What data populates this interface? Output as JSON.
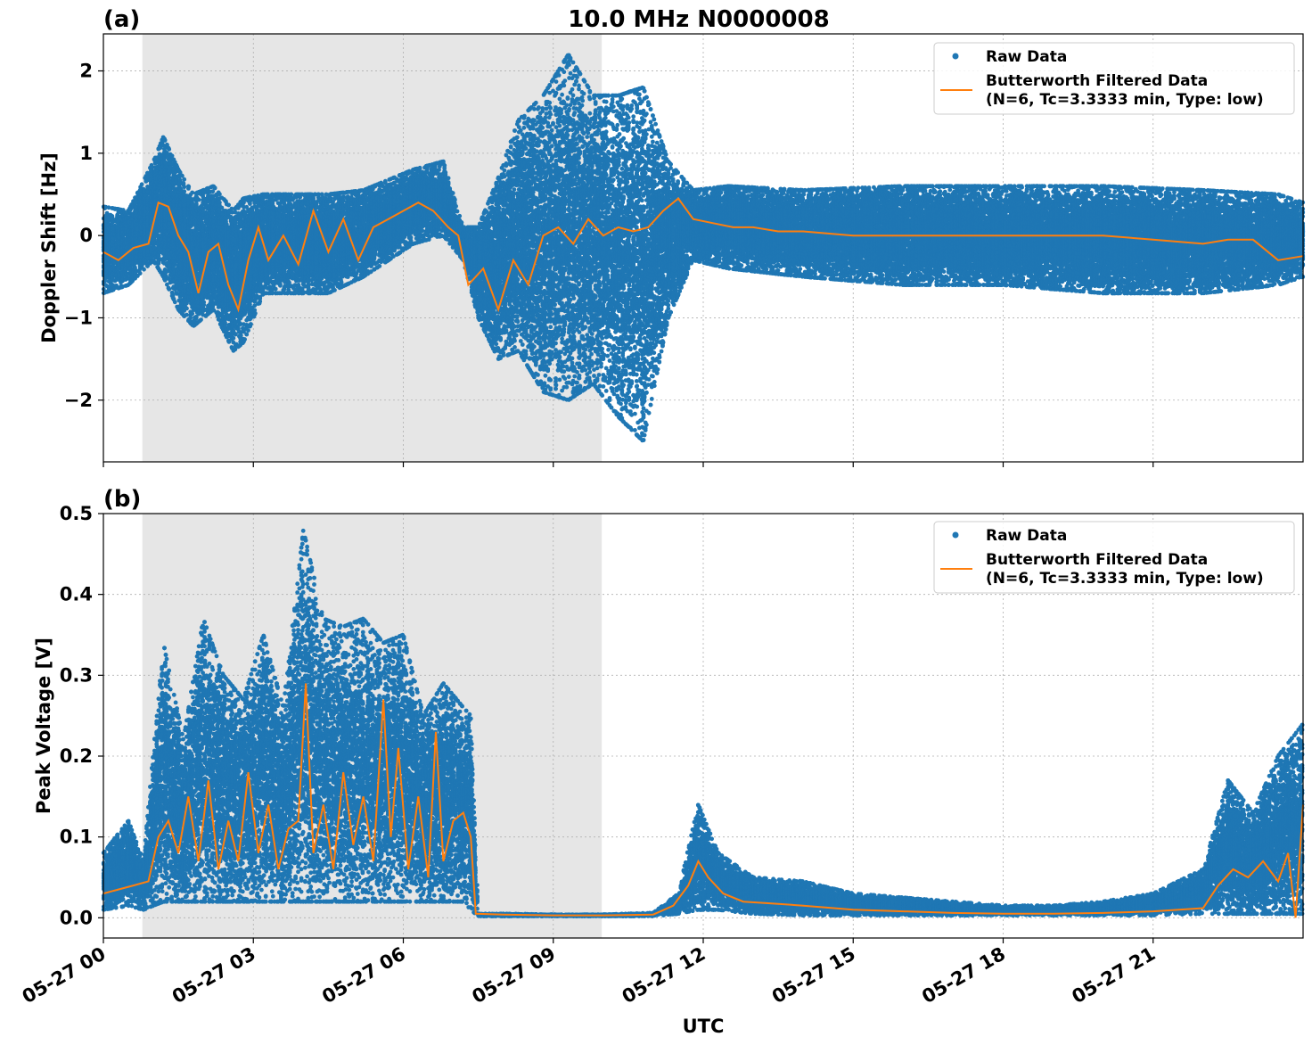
{
  "figure": {
    "title": "10.0 MHz N0000008",
    "xlabel": "UTC",
    "x_ticks": [
      "05-27 00",
      "05-27 03",
      "05-27 06",
      "05-27 09",
      "05-27 12",
      "05-27 15",
      "05-27 18",
      "05-27 21"
    ],
    "shaded_span_hours": [
      0.78,
      9.97
    ],
    "x_range_hours": [
      0,
      24
    ],
    "colors": {
      "raw": "#1f77b4",
      "filtered": "#ff7f0e",
      "shade": "#e6e6e6",
      "grid": "#b0b0b0"
    }
  },
  "chart_data": [
    {
      "type": "scatter",
      "panel_label": "(a)",
      "title": "10.0 MHz N0000008",
      "xlabel": "",
      "ylabel": "Doppler Shift [Hz]",
      "ylim": [
        -2.75,
        2.45
      ],
      "y_ticks": [
        2,
        1,
        0,
        -1,
        -2
      ],
      "y_tick_labels": [
        "2",
        "1",
        "0",
        "−1",
        "−2"
      ],
      "grid": true,
      "legend": {
        "placement": "top-right",
        "entries": [
          "Raw Data",
          "Butterworth Filtered Data",
          "(N=6, Tc=3.3333 min, Type: low)"
        ]
      },
      "series": [
        {
          "name": "Raw Data",
          "kind": "scatter",
          "approx_envelope": {
            "x_hours": [
              0,
              0.5,
              1.0,
              1.2,
              1.5,
              1.8,
              2.2,
              2.6,
              2.8,
              3.2,
              3.8,
              4.5,
              5.2,
              6.2,
              6.8,
              7.2,
              7.5,
              7.9,
              8.3,
              8.8,
              9.3,
              9.8,
              10.3,
              10.8,
              11.3,
              11.8,
              12.5,
              14,
              16,
              18,
              20,
              22,
              23.5,
              24
            ],
            "y_upper": [
              0.35,
              0.3,
              0.9,
              1.2,
              0.8,
              0.5,
              0.6,
              0.3,
              0.45,
              0.5,
              0.5,
              0.5,
              0.55,
              0.8,
              0.9,
              0.1,
              0.1,
              0.7,
              1.4,
              1.7,
              2.2,
              1.7,
              1.7,
              1.8,
              0.9,
              0.55,
              0.6,
              0.55,
              0.6,
              0.6,
              0.6,
              0.55,
              0.5,
              0.4
            ],
            "y_lower": [
              -0.7,
              -0.6,
              -0.3,
              -0.5,
              -0.9,
              -1.1,
              -0.9,
              -1.4,
              -1.3,
              -0.7,
              -0.7,
              -0.7,
              -0.5,
              -0.1,
              0.0,
              -0.3,
              -1.0,
              -1.5,
              -1.4,
              -1.9,
              -2.0,
              -1.8,
              -2.2,
              -2.5,
              -1.0,
              -0.3,
              -0.4,
              -0.5,
              -0.6,
              -0.6,
              -0.7,
              -0.7,
              -0.6,
              -0.5
            ]
          }
        },
        {
          "name": "Butterworth Filtered Data",
          "kind": "line",
          "x_hours": [
            0,
            0.3,
            0.6,
            0.9,
            1.1,
            1.3,
            1.5,
            1.7,
            1.9,
            2.1,
            2.3,
            2.5,
            2.7,
            2.9,
            3.1,
            3.3,
            3.6,
            3.9,
            4.2,
            4.5,
            4.8,
            5.1,
            5.4,
            5.7,
            6.0,
            6.3,
            6.6,
            6.9,
            7.1,
            7.3,
            7.6,
            7.9,
            8.2,
            8.5,
            8.8,
            9.1,
            9.4,
            9.7,
            10.0,
            10.3,
            10.6,
            10.9,
            11.2,
            11.5,
            11.8,
            12.2,
            12.6,
            13.0,
            13.5,
            14.0,
            15.0,
            16.0,
            17.0,
            18.0,
            19.0,
            20.0,
            21.0,
            22.0,
            22.5,
            23.0,
            23.5,
            24.0
          ],
          "y": [
            -0.2,
            -0.3,
            -0.15,
            -0.1,
            0.4,
            0.35,
            0.0,
            -0.2,
            -0.7,
            -0.2,
            -0.1,
            -0.6,
            -0.9,
            -0.3,
            0.1,
            -0.3,
            0.0,
            -0.35,
            0.3,
            -0.2,
            0.2,
            -0.3,
            0.1,
            0.2,
            0.3,
            0.4,
            0.3,
            0.1,
            0.0,
            -0.6,
            -0.4,
            -0.9,
            -0.3,
            -0.6,
            0.0,
            0.1,
            -0.1,
            0.2,
            0.0,
            0.1,
            0.05,
            0.1,
            0.3,
            0.45,
            0.2,
            0.15,
            0.1,
            0.1,
            0.05,
            0.05,
            0.0,
            0.0,
            0.0,
            0.0,
            0.0,
            0.0,
            -0.05,
            -0.1,
            -0.05,
            -0.05,
            -0.3,
            -0.25
          ]
        }
      ]
    },
    {
      "type": "scatter",
      "panel_label": "(b)",
      "xlabel": "UTC",
      "ylabel": "Peak Voltage [V]",
      "ylim": [
        -0.025,
        0.5
      ],
      "y_ticks": [
        0.5,
        0.4,
        0.3,
        0.2,
        0.1,
        0.0
      ],
      "y_tick_labels": [
        "0.5",
        "0.4",
        "0.3",
        "0.2",
        "0.1",
        "0.0"
      ],
      "grid": true,
      "legend": {
        "placement": "top-right",
        "entries": [
          "Raw Data",
          "Butterworth Filtered Data",
          "(N=6, Tc=3.3333 min, Type: low)"
        ]
      },
      "series": [
        {
          "name": "Raw Data",
          "kind": "scatter",
          "approx_envelope": {
            "x_hours": [
              0,
              0.5,
              0.8,
              1.2,
              1.6,
              2.0,
              2.4,
              2.8,
              3.2,
              3.6,
              4.0,
              4.4,
              4.8,
              5.2,
              5.6,
              6.0,
              6.4,
              6.8,
              7.2,
              7.35,
              7.5,
              8.0,
              9.0,
              10.0,
              11.0,
              11.5,
              11.9,
              12.3,
              13.0,
              14.0,
              15.0,
              16.0,
              17.0,
              18.0,
              19.0,
              20.0,
              21.0,
              22.0,
              22.5,
              23.0,
              23.5,
              24.0
            ],
            "y_upper": [
              0.08,
              0.12,
              0.07,
              0.34,
              0.22,
              0.37,
              0.3,
              0.27,
              0.35,
              0.26,
              0.48,
              0.37,
              0.36,
              0.37,
              0.34,
              0.35,
              0.25,
              0.29,
              0.26,
              0.25,
              0.005,
              0.005,
              0.004,
              0.004,
              0.006,
              0.03,
              0.14,
              0.08,
              0.05,
              0.045,
              0.03,
              0.025,
              0.02,
              0.015,
              0.015,
              0.02,
              0.03,
              0.06,
              0.17,
              0.13,
              0.2,
              0.24
            ],
            "y_lower": [
              0.01,
              0.015,
              0.01,
              0.02,
              0.02,
              0.02,
              0.02,
              0.02,
              0.02,
              0.02,
              0.02,
              0.02,
              0.02,
              0.02,
              0.02,
              0.02,
              0.02,
              0.02,
              0.02,
              0.01,
              0.002,
              0.002,
              0.002,
              0.002,
              0.002,
              0.005,
              0.01,
              0.01,
              0.005,
              0.003,
              0.003,
              0.003,
              0.003,
              0.003,
              0.003,
              0.003,
              0.003,
              0.005,
              0.005,
              0.005,
              0.005,
              0.005
            ]
          }
        },
        {
          "name": "Butterworth Filtered Data",
          "kind": "line",
          "x_hours": [
            0,
            0.3,
            0.6,
            0.9,
            1.1,
            1.3,
            1.5,
            1.7,
            1.9,
            2.1,
            2.3,
            2.5,
            2.7,
            2.9,
            3.1,
            3.3,
            3.5,
            3.7,
            3.9,
            4.05,
            4.2,
            4.4,
            4.6,
            4.8,
            5.0,
            5.2,
            5.4,
            5.6,
            5.75,
            5.9,
            6.1,
            6.3,
            6.5,
            6.65,
            6.8,
            7.0,
            7.2,
            7.35,
            7.45,
            8.0,
            9.0,
            10.0,
            11.0,
            11.4,
            11.7,
            11.9,
            12.1,
            12.4,
            12.8,
            13.3,
            14.0,
            15.0,
            16.0,
            17.0,
            18.0,
            19.0,
            20.0,
            21.0,
            22.0,
            22.3,
            22.6,
            22.9,
            23.2,
            23.5,
            23.7,
            23.85,
            24.0
          ],
          "y": [
            0.03,
            0.035,
            0.04,
            0.045,
            0.1,
            0.12,
            0.08,
            0.15,
            0.07,
            0.17,
            0.06,
            0.12,
            0.07,
            0.18,
            0.08,
            0.14,
            0.06,
            0.11,
            0.12,
            0.29,
            0.08,
            0.14,
            0.06,
            0.18,
            0.09,
            0.15,
            0.07,
            0.27,
            0.1,
            0.21,
            0.06,
            0.15,
            0.05,
            0.23,
            0.07,
            0.12,
            0.13,
            0.1,
            0.005,
            0.004,
            0.003,
            0.003,
            0.004,
            0.015,
            0.04,
            0.07,
            0.05,
            0.03,
            0.02,
            0.018,
            0.015,
            0.01,
            0.008,
            0.006,
            0.005,
            0.005,
            0.006,
            0.008,
            0.012,
            0.04,
            0.06,
            0.05,
            0.07,
            0.045,
            0.08,
            0.0,
            0.14
          ]
        }
      ]
    }
  ]
}
